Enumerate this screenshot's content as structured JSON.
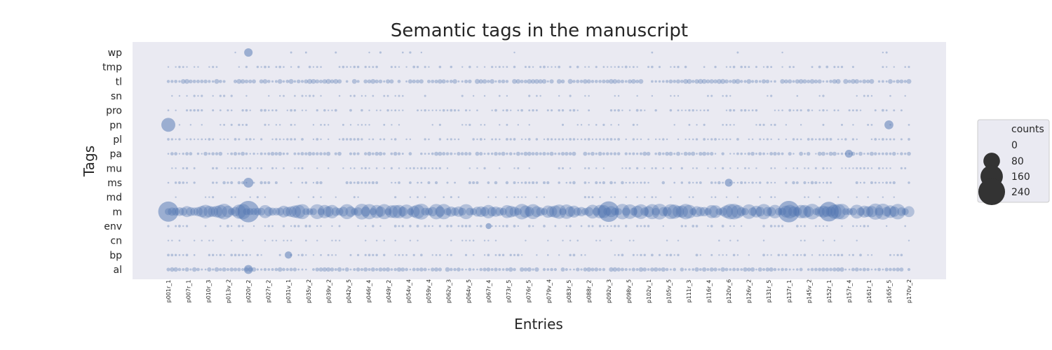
{
  "chart_data": {
    "type": "scatter",
    "title": "Semantic tags in the manuscript",
    "xlabel": "Entries",
    "ylabel": "Tags",
    "tags": [
      "wp",
      "tmp",
      "tl",
      "sn",
      "pro",
      "pn",
      "pl",
      "pa",
      "mu",
      "ms",
      "md",
      "m",
      "env",
      "cn",
      "bp",
      "al"
    ],
    "x_tick_labels": [
      "p001r_1",
      "p007r_1",
      "p010r_3",
      "p013v_2",
      "p020r_2",
      "p027r_2",
      "p031v_1",
      "p035v_2",
      "p039v_2",
      "p042v_5",
      "p046r_4",
      "p049r_2",
      "p054v_4",
      "p059v_4",
      "p062v_3",
      "p064v_5",
      "p067r_4",
      "p073r_5",
      "p076r_5",
      "p079v_4",
      "p083r_5",
      "p088r_2",
      "p092v_3",
      "p098v_5",
      "p102v_1",
      "p105v_5",
      "p111r_3",
      "p116r_4",
      "p120v_6",
      "p126v_2",
      "p131r_5",
      "p137r_1",
      "p145v_2",
      "p152r_1",
      "p157r_4",
      "p161r_1",
      "p165r_5",
      "p170v_2"
    ],
    "grid": false,
    "marker_color": "#4c72b0",
    "background_color": "#eaeaf2",
    "legend": {
      "title": "counts",
      "placement": "right",
      "entries": [
        {
          "label": "0",
          "size": 0
        },
        {
          "label": "80",
          "size": 80
        },
        {
          "label": "160",
          "size": 160
        },
        {
          "label": "240",
          "size": 240
        }
      ]
    },
    "highlights": [
      {
        "tag": "wp",
        "entry": "p020r_2",
        "count": 40
      },
      {
        "tag": "ms",
        "entry": "p020r_2",
        "count": 55
      },
      {
        "tag": "pn",
        "entry": "p001r_1",
        "count": 110
      },
      {
        "tag": "pn",
        "entry": "p165r_5",
        "count": 45
      },
      {
        "tag": "bp",
        "entry": "p031v_1",
        "count": 30
      },
      {
        "tag": "m",
        "entry": "p001r_1",
        "count": 230
      },
      {
        "tag": "m",
        "entry": "p020r_2",
        "count": 260
      },
      {
        "tag": "m",
        "entry": "p092v_3",
        "count": 240
      },
      {
        "tag": "m",
        "entry": "p137r_1",
        "count": 260
      },
      {
        "tag": "m",
        "entry": "p152r_1",
        "count": 220
      },
      {
        "tag": "al",
        "entry": "p020r_2",
        "count": 45
      },
      {
        "tag": "pa",
        "entry": "p157r_4",
        "count": 35
      },
      {
        "tag": "ms",
        "entry": "p120v_6",
        "count": 35
      },
      {
        "tag": "env",
        "entry": "p067r_4",
        "count": 20
      }
    ]
  }
}
